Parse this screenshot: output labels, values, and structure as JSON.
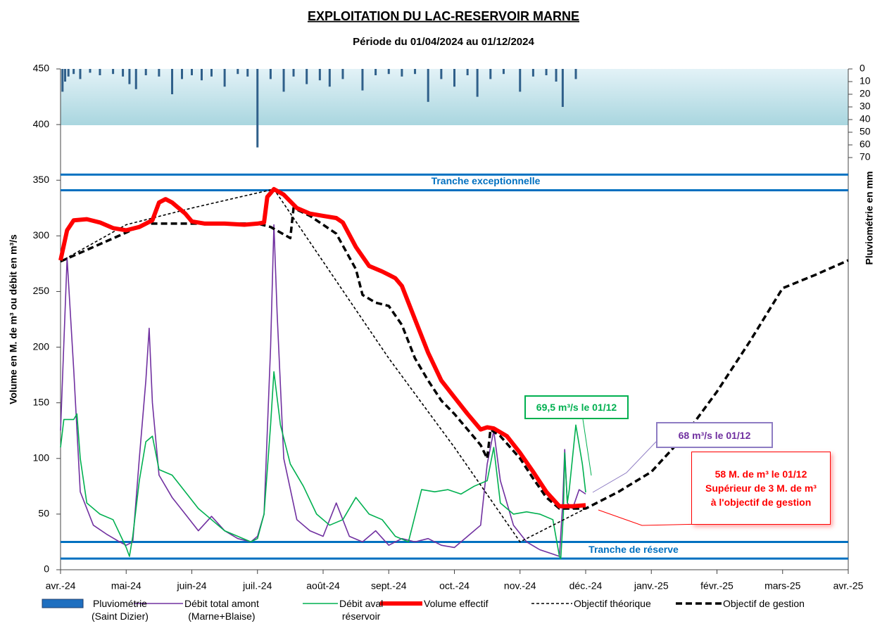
{
  "chart_data": {
    "type": "line",
    "title": "EXPLOITATION  DU  LAC-RESERVOIR  MARNE",
    "subtitle": "Période du 01/04/2024 au 01/12/2024",
    "y_label": "Volume en M. de m³ ou débit en m³/s",
    "y2_label": "Pluviométrie en mm",
    "xlim": [
      0,
      12
    ],
    "xticks": [
      {
        "value": 0,
        "label": "avr.-24"
      },
      {
        "value": 1,
        "label": "mai-24"
      },
      {
        "value": 2,
        "label": "juin-24"
      },
      {
        "value": 3,
        "label": "juil.-24"
      },
      {
        "value": 4,
        "label": "août-24"
      },
      {
        "value": 5,
        "label": "sept.-24"
      },
      {
        "value": 6,
        "label": "oct.-24"
      },
      {
        "value": 7,
        "label": "nov.-24"
      },
      {
        "value": 8,
        "label": "déc.-24"
      },
      {
        "value": 9,
        "label": "janv.-25"
      },
      {
        "value": 10,
        "label": "févr.-25"
      },
      {
        "value": 11,
        "label": "mars-25"
      },
      {
        "value": 12,
        "label": "avr.-25"
      }
    ],
    "ylim": [
      0,
      450
    ],
    "yticks": [
      0,
      50,
      100,
      150,
      200,
      250,
      300,
      350,
      400,
      450
    ],
    "y2lim": [
      0,
      70
    ],
    "y2ticks": [
      0,
      10,
      20,
      30,
      40,
      50,
      60,
      70
    ],
    "y2_inverted": true,
    "reference_lines": [
      {
        "value": 355,
        "color": "#0070c0"
      },
      {
        "value": 341,
        "color": "#0070c0",
        "label": "Tranche exceptionnelle"
      },
      {
        "value": 25,
        "color": "#0070c0",
        "label": "Tranche de réserve"
      },
      {
        "value": 10,
        "color": "#0070c0"
      }
    ],
    "series": [
      {
        "name": "Pluviométrie\n(Saint Dizier)",
        "type": "bar",
        "axis": "y2",
        "color": "#2f5f8a",
        "x": [
          0.03,
          0.07,
          0.12,
          0.2,
          0.3,
          0.45,
          0.6,
          0.8,
          0.95,
          1.05,
          1.15,
          1.3,
          1.5,
          1.7,
          1.85,
          2.0,
          2.15,
          2.3,
          2.5,
          2.7,
          2.85,
          3.0,
          3.2,
          3.4,
          3.55,
          3.75,
          3.95,
          4.1,
          4.3,
          4.6,
          4.8,
          5.0,
          5.2,
          5.4,
          5.6,
          5.8,
          6.0,
          6.2,
          6.35,
          6.55,
          6.75,
          7.0,
          7.2,
          7.4,
          7.55,
          7.65,
          7.85
        ],
        "values": [
          18,
          10,
          6,
          4,
          8,
          3,
          5,
          4,
          6,
          12,
          16,
          5,
          6,
          20,
          8,
          5,
          9,
          6,
          14,
          4,
          6,
          62,
          8,
          18,
          6,
          12,
          9,
          14,
          8,
          17,
          5,
          4,
          6,
          4,
          26,
          8,
          14,
          5,
          22,
          8,
          4,
          18,
          6,
          5,
          10,
          30,
          8
        ]
      },
      {
        "name": "Débit total amont\n(Marne+Blaise)",
        "color": "#7030a0",
        "x": [
          0,
          0.1,
          0.2,
          0.3,
          0.5,
          0.7,
          0.9,
          1.0,
          1.1,
          1.2,
          1.3,
          1.35,
          1.4,
          1.5,
          1.7,
          1.9,
          2.1,
          2.3,
          2.5,
          2.7,
          2.9,
          3.0,
          3.1,
          3.2,
          3.25,
          3.3,
          3.4,
          3.6,
          3.8,
          4.0,
          4.2,
          4.4,
          4.6,
          4.8,
          5.0,
          5.2,
          5.4,
          5.6,
          5.8,
          6.0,
          6.2,
          6.4,
          6.5,
          6.6,
          6.7,
          6.9,
          7.1,
          7.3,
          7.5,
          7.6,
          7.65,
          7.68,
          7.72,
          7.8,
          7.9,
          8.0
        ],
        "values": [
          125,
          280,
          180,
          70,
          40,
          32,
          25,
          22,
          25,
          100,
          170,
          217,
          150,
          85,
          65,
          50,
          35,
          48,
          35,
          28,
          25,
          30,
          50,
          200,
          310,
          230,
          100,
          45,
          35,
          30,
          60,
          30,
          25,
          35,
          22,
          28,
          25,
          28,
          22,
          20,
          30,
          40,
          95,
          125,
          80,
          40,
          25,
          18,
          14,
          12,
          60,
          108,
          60,
          55,
          72,
          68
        ]
      },
      {
        "name": "Débit aval\nréservoir",
        "color": "#00b050",
        "x": [
          0,
          0.05,
          0.2,
          0.25,
          0.3,
          0.4,
          0.6,
          0.8,
          1.0,
          1.05,
          1.1,
          1.2,
          1.3,
          1.4,
          1.5,
          1.7,
          1.9,
          2.1,
          2.3,
          2.5,
          2.7,
          2.9,
          3.0,
          3.1,
          3.2,
          3.25,
          3.35,
          3.5,
          3.7,
          3.9,
          4.1,
          4.3,
          4.5,
          4.7,
          4.9,
          5.1,
          5.3,
          5.5,
          5.7,
          5.9,
          6.1,
          6.3,
          6.5,
          6.6,
          6.7,
          6.9,
          7.1,
          7.3,
          7.5,
          7.6,
          7.62,
          7.66,
          7.68,
          7.72,
          7.75,
          7.85,
          7.95,
          8.0
        ],
        "values": [
          110,
          135,
          135,
          140,
          100,
          60,
          50,
          45,
          20,
          12,
          30,
          80,
          115,
          120,
          90,
          85,
          70,
          55,
          45,
          35,
          30,
          25,
          28,
          50,
          130,
          178,
          130,
          95,
          75,
          50,
          40,
          45,
          65,
          50,
          45,
          30,
          25,
          72,
          70,
          72,
          68,
          75,
          80,
          110,
          60,
          50,
          52,
          50,
          45,
          12,
          10,
          50,
          105,
          60,
          72,
          130,
          95,
          69.5
        ]
      },
      {
        "name": "Volume effectif",
        "color": "#ff0000",
        "thick": true,
        "x": [
          0,
          0.1,
          0.2,
          0.4,
          0.6,
          0.8,
          1.0,
          1.2,
          1.4,
          1.5,
          1.6,
          1.7,
          1.9,
          2.0,
          2.2,
          2.5,
          2.8,
          3.0,
          3.1,
          3.15,
          3.25,
          3.4,
          3.6,
          3.8,
          4.0,
          4.2,
          4.3,
          4.5,
          4.7,
          4.9,
          5.0,
          5.1,
          5.2,
          5.4,
          5.6,
          5.8,
          6.0,
          6.2,
          6.4,
          6.5,
          6.6,
          6.8,
          7.0,
          7.2,
          7.4,
          7.6,
          7.8,
          8.0
        ],
        "values": [
          278,
          305,
          314,
          315,
          312,
          307,
          305,
          308,
          314,
          330,
          333,
          330,
          320,
          313,
          311,
          311,
          310,
          311,
          312,
          335,
          342,
          337,
          325,
          320,
          318,
          316,
          312,
          290,
          273,
          268,
          265,
          262,
          255,
          225,
          195,
          170,
          155,
          140,
          126,
          128,
          127,
          120,
          105,
          88,
          70,
          57,
          57,
          58
        ]
      },
      {
        "name": "Objectif théorique",
        "color": "#000000",
        "dash": true,
        "x": [
          0,
          1.0,
          2.0,
          3.25,
          5.0,
          6.0,
          7.0,
          8.0
        ],
        "values": [
          277,
          310,
          325,
          342,
          190,
          110,
          25,
          55
        ]
      },
      {
        "name": "Objectif de gestion",
        "color": "#000000",
        "dash": true,
        "thick": true,
        "x": [
          0,
          0.5,
          1.0,
          1.3,
          1.5,
          2.0,
          2.5,
          3.0,
          3.2,
          3.5,
          3.55,
          3.8,
          4.0,
          4.2,
          4.5,
          4.6,
          4.8,
          5.0,
          5.2,
          5.4,
          5.6,
          5.8,
          6.0,
          6.2,
          6.4,
          6.5,
          6.55,
          6.7,
          7.0,
          7.2,
          7.4,
          7.6,
          8.0,
          8.5,
          9.0,
          9.5,
          10.0,
          10.5,
          11.0,
          11.5,
          12.0
        ],
        "values": [
          277,
          290,
          303,
          311,
          311,
          311,
          311,
          311,
          308,
          298,
          325,
          318,
          310,
          302,
          270,
          247,
          240,
          237,
          220,
          190,
          170,
          152,
          140,
          126,
          112,
          100,
          126,
          120,
          100,
          82,
          65,
          55,
          55,
          70,
          88,
          120,
          160,
          205,
          253,
          265,
          278
        ]
      }
    ],
    "annotations": [
      {
        "text": "69,5 m³/s le 01/12",
        "color": "#00b050"
      },
      {
        "text": "68 m³/s le 01/12",
        "color": "#7030a0"
      },
      {
        "text": "58 M. de m³ le 01/12\nSupérieur de 3 M. de m³\nà l'objectif de gestion",
        "color": "#ff0000"
      }
    ]
  }
}
